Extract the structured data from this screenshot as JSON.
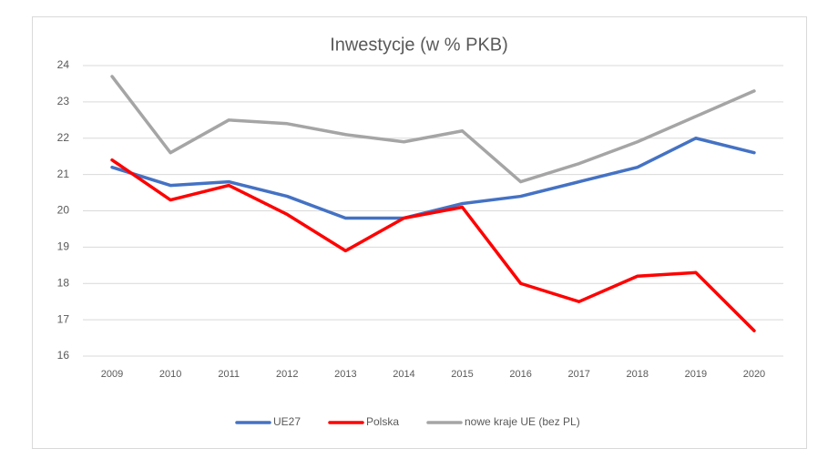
{
  "chart_data": {
    "type": "line",
    "title": "Inwestycje (w % PKB)",
    "categories": [
      "2009",
      "2010",
      "2011",
      "2012",
      "2013",
      "2014",
      "2015",
      "2016",
      "2017",
      "2018",
      "2019",
      "2020"
    ],
    "series": [
      {
        "name": "UE27",
        "color": "#4472c4",
        "values": [
          21.2,
          20.7,
          20.8,
          20.4,
          19.8,
          19.8,
          20.2,
          20.4,
          20.8,
          21.2,
          22.0,
          21.6
        ]
      },
      {
        "name": "Polska",
        "color": "#ff0000",
        "values": [
          21.4,
          20.3,
          20.7,
          19.9,
          18.9,
          19.8,
          20.1,
          18.0,
          17.5,
          18.2,
          18.3,
          16.7
        ]
      },
      {
        "name": "nowe kraje UE (bez PL)",
        "color": "#a5a5a5",
        "values": [
          23.7,
          21.6,
          22.5,
          22.4,
          22.1,
          21.9,
          22.2,
          20.8,
          21.3,
          21.9,
          22.6,
          23.3
        ]
      }
    ],
    "ylim": [
      16,
      24
    ],
    "yticks": [
      16,
      17,
      18,
      19,
      20,
      21,
      22,
      23,
      24
    ],
    "grid": true,
    "legend": "bottom"
  }
}
